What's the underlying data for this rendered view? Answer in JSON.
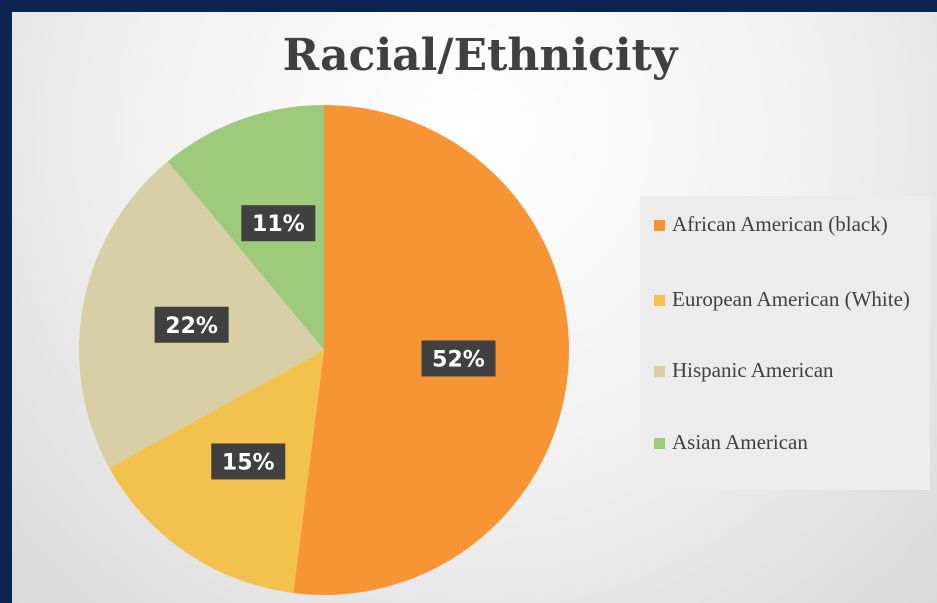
{
  "chart_data": {
    "type": "pie",
    "title": "Racial/Ethnicity",
    "categories": [
      "African American (black)",
      "European American (White)",
      "Hispanic American",
      "Asian American"
    ],
    "values": [
      52,
      15,
      22,
      11
    ],
    "value_labels": [
      "52%",
      "15%",
      "22%",
      "11%"
    ],
    "colors": [
      "#f79433",
      "#f3c24e",
      "#d8cfa6",
      "#9ecb7b"
    ],
    "legend": "right"
  }
}
